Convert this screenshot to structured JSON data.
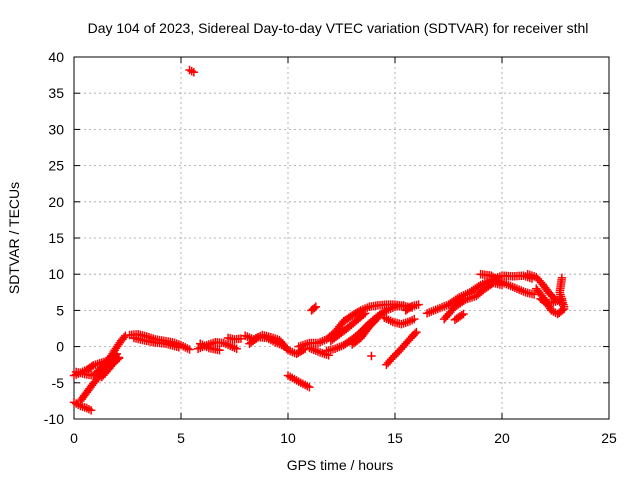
{
  "chart_data": {
    "type": "scatter",
    "title": "Day 104 of 2023, Sidereal Day-to-day VTEC variation (SDTVAR) for receiver sthl",
    "xlabel": "GPS time / hours",
    "ylabel": "SDTVAR / TECUs",
    "xlim": [
      0,
      25
    ],
    "ylim": [
      -10,
      40
    ],
    "xticks": [
      0,
      5,
      10,
      15,
      20,
      25
    ],
    "yticks": [
      -10,
      -5,
      0,
      5,
      10,
      15,
      20,
      25,
      30,
      35,
      40
    ],
    "grid": true,
    "marker": "+",
    "color": "#ff0000",
    "series": [
      {
        "name": "SDTVAR",
        "tracks": [
          [
            [
              0.0,
              -4.0
            ],
            [
              0.3,
              -3.6
            ],
            [
              0.6,
              -3.2
            ],
            [
              0.9,
              -2.6
            ],
            [
              1.2,
              -2.3
            ],
            [
              1.5,
              -2.0
            ],
            [
              1.8,
              -1.4
            ],
            [
              2.0,
              -1.0
            ]
          ],
          [
            [
              0.1,
              -3.5
            ],
            [
              0.5,
              -3.8
            ],
            [
              0.9,
              -4.0
            ],
            [
              1.2,
              -3.2
            ],
            [
              1.6,
              -2.0
            ],
            [
              1.9,
              -0.5
            ],
            [
              2.2,
              0.8
            ],
            [
              2.4,
              1.5
            ]
          ],
          [
            [
              0.0,
              -7.7
            ],
            [
              0.3,
              -8.2
            ],
            [
              0.6,
              -8.5
            ],
            [
              0.8,
              -8.8
            ]
          ],
          [
            [
              0.3,
              -7.5
            ],
            [
              0.6,
              -6.3
            ],
            [
              0.9,
              -5.1
            ],
            [
              1.2,
              -4.1
            ],
            [
              1.5,
              -3.2
            ],
            [
              1.8,
              -2.4
            ],
            [
              2.1,
              -1.6
            ]
          ],
          [
            [
              1.3,
              -4.2
            ],
            [
              1.6,
              -3.2
            ],
            [
              1.9,
              -2.0
            ],
            [
              2.1,
              -1.5
            ]
          ],
          [
            [
              2.6,
              1.6
            ],
            [
              3.0,
              1.7
            ],
            [
              3.4,
              1.4
            ],
            [
              3.8,
              1.0
            ],
            [
              4.2,
              0.8
            ],
            [
              4.6,
              0.6
            ],
            [
              5.0,
              0.2
            ],
            [
              5.4,
              -0.4
            ]
          ],
          [
            [
              2.8,
              1.2
            ],
            [
              3.2,
              0.9
            ],
            [
              3.7,
              0.6
            ],
            [
              4.3,
              0.4
            ],
            [
              4.9,
              -0.1
            ]
          ],
          [
            [
              5.8,
              -0.3
            ],
            [
              6.2,
              0.2
            ],
            [
              6.6,
              0.6
            ],
            [
              7.0,
              0.5
            ],
            [
              7.3,
              0.1
            ],
            [
              7.6,
              -0.3
            ]
          ],
          [
            [
              5.9,
              0.4
            ],
            [
              6.3,
              -0.2
            ],
            [
              6.8,
              -0.5
            ]
          ],
          [
            [
              7.2,
              1.2
            ],
            [
              7.5,
              1.0
            ],
            [
              7.8,
              1.1
            ]
          ],
          [
            [
              8.0,
              1.5
            ],
            [
              8.4,
              1.0
            ],
            [
              8.8,
              1.6
            ],
            [
              9.2,
              1.3
            ],
            [
              9.6,
              0.9
            ],
            [
              10.0,
              -0.5
            ],
            [
              10.4,
              -1.0
            ],
            [
              10.8,
              -0.3
            ]
          ],
          [
            [
              8.2,
              0.4
            ],
            [
              8.6,
              1.3
            ],
            [
              9.0,
              1.2
            ],
            [
              9.4,
              0.6
            ],
            [
              9.8,
              0.1
            ]
          ],
          [
            [
              10.0,
              -4.0
            ],
            [
              10.3,
              -4.5
            ],
            [
              10.6,
              -5.0
            ],
            [
              11.0,
              -5.6
            ]
          ],
          [
            [
              10.5,
              0.0
            ],
            [
              11.0,
              0.5
            ],
            [
              11.4,
              0.5
            ],
            [
              11.8,
              1.0
            ],
            [
              12.2,
              2.0
            ],
            [
              12.6,
              3.5
            ],
            [
              13.0,
              4.3
            ],
            [
              13.4,
              5.0
            ],
            [
              13.8,
              5.5
            ],
            [
              14.2,
              5.7
            ],
            [
              14.6,
              5.8
            ],
            [
              15.0,
              5.8
            ],
            [
              15.4,
              5.6
            ],
            [
              15.8,
              5.4
            ]
          ],
          [
            [
              11.0,
              -0.2
            ],
            [
              11.5,
              -0.8
            ],
            [
              11.9,
              -1.2
            ]
          ],
          [
            [
              11.1,
              5.0
            ],
            [
              11.3,
              5.5
            ]
          ],
          [
            [
              11.8,
              -0.6
            ],
            [
              12.2,
              -0.3
            ],
            [
              12.6,
              0.2
            ],
            [
              13.0,
              1.0
            ],
            [
              13.4,
              2.0
            ],
            [
              13.8,
              3.2
            ],
            [
              14.2,
              4.2
            ],
            [
              14.6,
              5.0
            ],
            [
              15.0,
              5.5
            ],
            [
              15.4,
              5.7
            ]
          ],
          [
            [
              12.0,
              0.8
            ],
            [
              12.4,
              1.7
            ],
            [
              12.8,
              2.6
            ],
            [
              13.2,
              3.6
            ],
            [
              13.6,
              4.6
            ]
          ],
          [
            [
              13.0,
              0.3
            ],
            [
              13.4,
              1.2
            ],
            [
              13.8,
              2.8
            ],
            [
              14.2,
              4.0
            ]
          ],
          [
            [
              14.5,
              4.0
            ],
            [
              14.9,
              3.4
            ],
            [
              15.3,
              3.1
            ],
            [
              15.7,
              3.5
            ],
            [
              15.9,
              3.8
            ]
          ],
          [
            [
              13.9,
              -1.3
            ]
          ],
          [
            [
              14.6,
              -2.5
            ],
            [
              14.9,
              -1.5
            ],
            [
              15.2,
              -0.6
            ],
            [
              15.5,
              0.4
            ],
            [
              15.8,
              1.4
            ],
            [
              16.0,
              2.0
            ]
          ],
          [
            [
              15.5,
              5.0
            ],
            [
              15.8,
              5.6
            ],
            [
              16.1,
              5.8
            ]
          ],
          [
            [
              16.5,
              4.6
            ],
            [
              17.0,
              5.2
            ],
            [
              17.5,
              5.8
            ],
            [
              18.0,
              6.8
            ],
            [
              18.5,
              7.5
            ],
            [
              19.0,
              8.5
            ],
            [
              19.5,
              9.2
            ],
            [
              20.0,
              9.8
            ],
            [
              20.5,
              9.7
            ],
            [
              21.0,
              9.8
            ],
            [
              21.4,
              9.4
            ]
          ],
          [
            [
              17.3,
              3.8
            ],
            [
              17.8,
              5.5
            ],
            [
              18.3,
              6.5
            ],
            [
              18.8,
              7.0
            ],
            [
              19.2,
              8.0
            ],
            [
              19.6,
              8.8
            ],
            [
              20.0,
              8.5
            ]
          ],
          [
            [
              17.8,
              3.7
            ],
            [
              18.2,
              4.5
            ]
          ],
          [
            [
              19.0,
              10.0
            ],
            [
              19.5,
              9.8
            ],
            [
              19.9,
              9.0
            ],
            [
              20.3,
              8.5
            ],
            [
              20.7,
              8.0
            ],
            [
              21.1,
              7.5
            ],
            [
              21.5,
              7.2
            ]
          ],
          [
            [
              21.2,
              10.0
            ],
            [
              21.6,
              9.6
            ],
            [
              21.9,
              8.6
            ],
            [
              22.2,
              7.4
            ],
            [
              22.5,
              6.5
            ],
            [
              22.8,
              6.0
            ]
          ],
          [
            [
              21.6,
              8.0
            ],
            [
              22.0,
              6.5
            ],
            [
              22.3,
              5.0
            ],
            [
              22.6,
              4.5
            ],
            [
              22.9,
              5.2
            ]
          ],
          [
            [
              21.8,
              6.6
            ],
            [
              22.1,
              6.0
            ],
            [
              22.4,
              6.1
            ],
            [
              22.8,
              6.6
            ]
          ],
          [
            [
              22.8,
              9.5
            ],
            [
              22.7,
              7.5
            ],
            [
              22.9,
              5.5
            ]
          ],
          [
            [
              5.4,
              38.2
            ],
            [
              5.6,
              37.9
            ]
          ]
        ]
      }
    ]
  }
}
